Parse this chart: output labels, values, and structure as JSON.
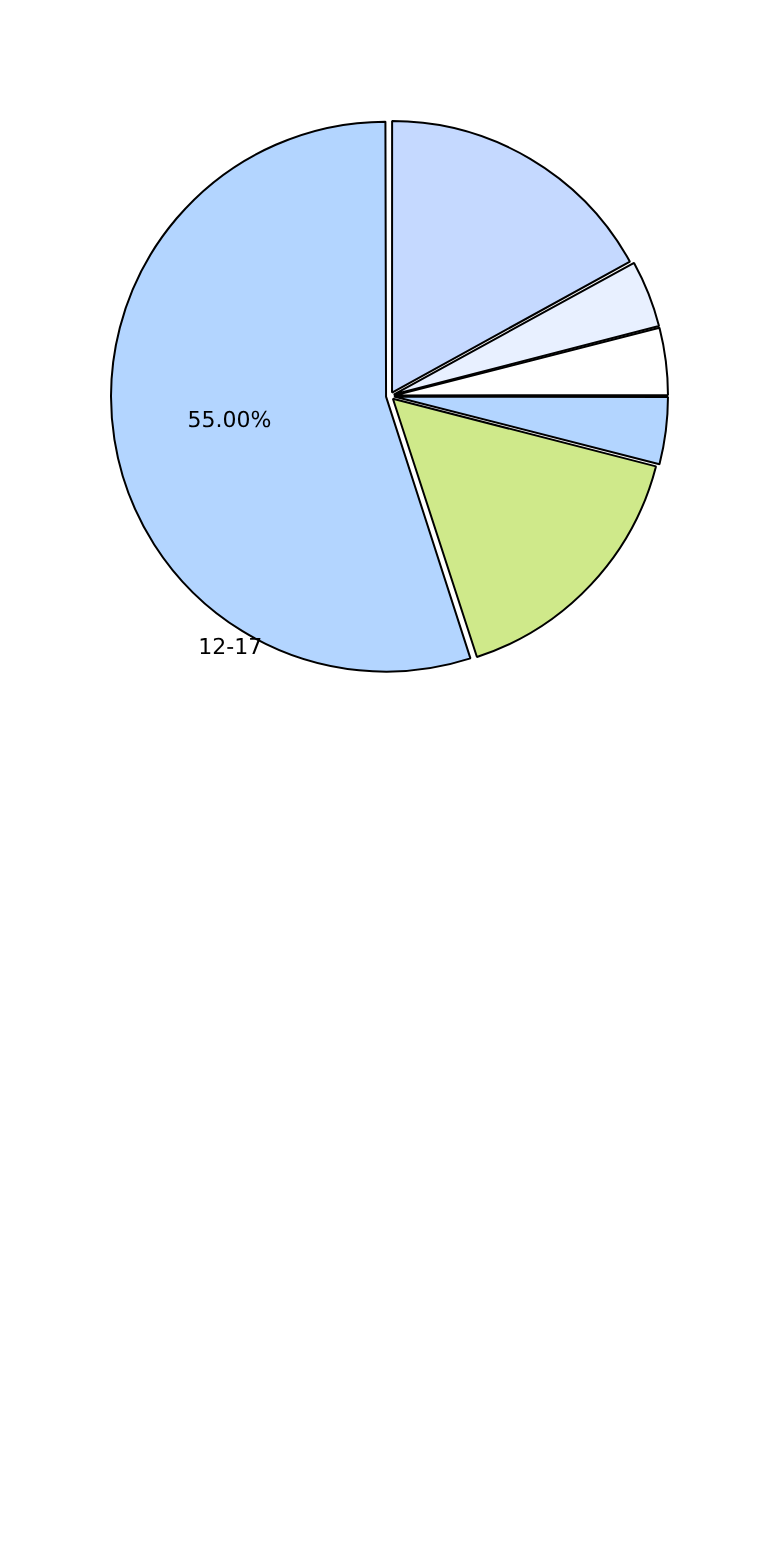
{
  "chart_data": {
    "type": "pie",
    "categories": [
      null,
      null,
      null,
      null,
      null,
      "12-17"
    ],
    "values": [
      17,
      4,
      4,
      4,
      16,
      55
    ],
    "colors": [
      "#c5d9ff",
      "#e8f0ff",
      "#ffffff",
      "#b3d5ff",
      "#cfe98a",
      "#b3d5ff"
    ],
    "value_labels": [
      null,
      null,
      null,
      null,
      null,
      "55.00%"
    ]
  }
}
